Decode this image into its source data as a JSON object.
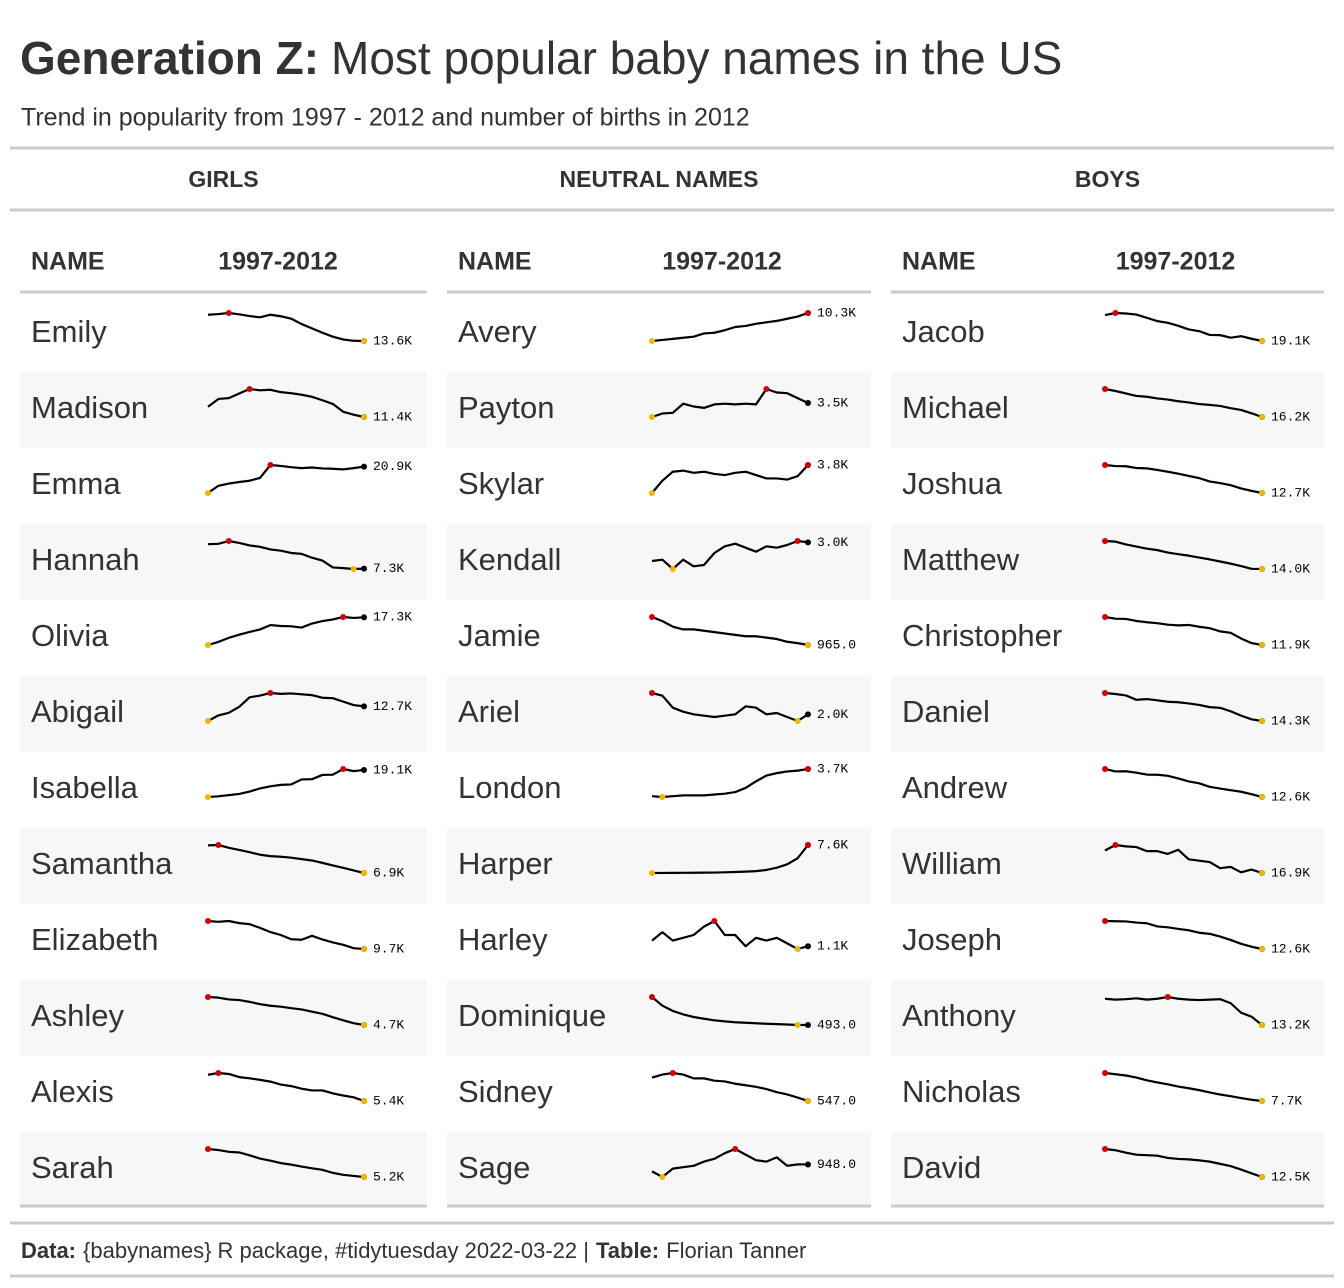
{
  "title_bold": "Generation Z:",
  "title_rest": "Most popular baby names in the US",
  "subtitle": "Trend in popularity from 1997 - 2012 and number of births in 2012",
  "highlight_colors": {
    "line": "#000000",
    "max": "#d40000",
    "min": "#f2b600",
    "last": "#000000"
  },
  "groups": [
    {
      "heading": "GIRLS",
      "col_name": "NAME",
      "col_trend": "1997-2012",
      "rows": [
        {
          "name": "Emily",
          "values": [
            25700,
            26000,
            26500,
            25900,
            25100,
            24500,
            25700,
            25000,
            23900,
            21400,
            19400,
            17400,
            15600,
            14300,
            13700,
            13600
          ],
          "value_label": "13.6K"
        },
        {
          "name": "Madison",
          "values": [
            15300,
            18300,
            18600,
            20400,
            22100,
            21600,
            21800,
            20900,
            20500,
            19900,
            19100,
            17800,
            16400,
            13400,
            12300,
            11400
          ],
          "value_label": "11.4K"
        },
        {
          "name": "Emma",
          "values": [
            12500,
            14800,
            15500,
            16000,
            16400,
            17300,
            21400,
            21100,
            20700,
            20400,
            20600,
            20300,
            20200,
            20000,
            20400,
            20900
          ],
          "value_label": "20.9K"
        },
        {
          "name": "Hannah",
          "values": [
            21200,
            21400,
            23000,
            21900,
            20500,
            19700,
            18200,
            17500,
            16200,
            15700,
            13500,
            11900,
            8000,
            7600,
            7100,
            7300
          ],
          "value_label": "7.3K"
        },
        {
          "name": "Olivia",
          "values": [
            8400,
            9400,
            10700,
            11700,
            12600,
            13400,
            14800,
            14500,
            14400,
            14000,
            15300,
            16100,
            16600,
            17400,
            17100,
            17300
          ],
          "value_label": "17.3K"
        },
        {
          "name": "Abigail",
          "values": [
            9300,
            10600,
            11200,
            12600,
            14800,
            15200,
            15800,
            15600,
            15700,
            15500,
            15300,
            14700,
            14600,
            13800,
            13000,
            12700
          ],
          "value_label": "12.7K"
        },
        {
          "name": "Isabella",
          "values": [
            7700,
            8000,
            8500,
            9000,
            10000,
            11300,
            12200,
            12800,
            13000,
            15100,
            15200,
            17000,
            17100,
            19500,
            18600,
            19100
          ],
          "value_label": "19.1K"
        },
        {
          "name": "Samantha",
          "values": [
            20800,
            21000,
            19600,
            18500,
            17400,
            16100,
            15400,
            15100,
            14600,
            13900,
            13200,
            12000,
            10700,
            9500,
            8200,
            6900
          ],
          "value_label": "6.9K"
        },
        {
          "name": "Elizabeth",
          "values": [
            20300,
            20000,
            20300,
            19500,
            19100,
            17700,
            16100,
            15000,
            13400,
            13200,
            14700,
            13300,
            12200,
            11300,
            10000,
            9700
          ],
          "value_label": "9.7K"
        },
        {
          "name": "Ashley",
          "values": [
            22000,
            21600,
            20500,
            20100,
            19000,
            17600,
            16600,
            16000,
            15100,
            14300,
            12900,
            11600,
            9500,
            7600,
            5800,
            4700
          ],
          "value_label": "4.7K"
        },
        {
          "name": "Alexis",
          "values": [
            18800,
            19700,
            19200,
            17600,
            17000,
            16200,
            15300,
            13800,
            13000,
            11700,
            10800,
            10800,
            9300,
            8200,
            7300,
            5400
          ],
          "value_label": "5.4K"
        },
        {
          "name": "Sarah",
          "values": [
            18100,
            17600,
            16800,
            16500,
            15200,
            13700,
            12700,
            11600,
            10900,
            10000,
            9200,
            8500,
            7100,
            6200,
            5700,
            5200
          ],
          "value_label": "5.2K"
        }
      ]
    },
    {
      "heading": "NEUTRAL NAMES",
      "col_name": "NAME",
      "col_trend": "1997-2012",
      "rows": [
        {
          "name": "Avery",
          "values": [
            2500,
            2800,
            3100,
            3400,
            3700,
            4600,
            4800,
            5500,
            6400,
            6700,
            7300,
            7700,
            8100,
            8700,
            9300,
            10300
          ],
          "value_label": "10.3K"
        },
        {
          "name": "Payton",
          "values": [
            1500,
            2000,
            2100,
            3400,
            3000,
            2800,
            3300,
            3400,
            3300,
            3400,
            3300,
            5500,
            5000,
            4900,
            4200,
            3500
          ],
          "value_label": "3.5K"
        },
        {
          "name": "Skylar",
          "values": [
            1300,
            2400,
            3200,
            3300,
            3100,
            3200,
            3000,
            2900,
            3100,
            3200,
            2900,
            2600,
            2600,
            2500,
            2800,
            3800
          ],
          "value_label": "3.8K"
        },
        {
          "name": "Kendall",
          "values": [
            1600,
            1700,
            1000,
            1700,
            1200,
            1300,
            2200,
            2700,
            2900,
            2600,
            2300,
            2700,
            2600,
            2800,
            3100,
            3000
          ],
          "value_label": "3.0K"
        },
        {
          "name": "Jamie",
          "values": [
            3000,
            2700,
            2300,
            2100,
            2100,
            2000,
            1900,
            1800,
            1700,
            1600,
            1600,
            1500,
            1400,
            1200,
            1100,
            965
          ],
          "value_label": "965.0"
        },
        {
          "name": "Ariel",
          "values": [
            3600,
            3400,
            2500,
            2200,
            2000,
            1900,
            1800,
            1900,
            2000,
            2600,
            2500,
            2000,
            2100,
            1800,
            1500,
            2000
          ],
          "value_label": "2.0K"
        },
        {
          "name": "London",
          "values": [
            400,
            300,
            400,
            500,
            500,
            500,
            600,
            700,
            900,
            1400,
            2200,
            2900,
            3200,
            3400,
            3500,
            3700
          ],
          "value_label": "3.7K"
        },
        {
          "name": "Harper",
          "values": [
            200,
            210,
            230,
            250,
            270,
            290,
            320,
            380,
            460,
            560,
            700,
            1000,
            1600,
            2500,
            4100,
            7600
          ],
          "value_label": "7.6K"
        },
        {
          "name": "Harley",
          "values": [
            1300,
            1600,
            1300,
            1400,
            1500,
            1800,
            2000,
            1500,
            1500,
            1100,
            1400,
            1300,
            1400,
            1200,
            1000,
            1100
          ],
          "value_label": "1.1K"
        },
        {
          "name": "Dominique",
          "values": [
            2100,
            1600,
            1300,
            1100,
            950,
            850,
            760,
            700,
            650,
            620,
            590,
            560,
            540,
            520,
            490,
            493
          ],
          "value_label": "493.0"
        },
        {
          "name": "Sidney",
          "values": [
            3600,
            4000,
            4200,
            4000,
            3500,
            3500,
            3200,
            3100,
            2800,
            2600,
            2400,
            2100,
            1700,
            1400,
            1000,
            547
          ],
          "value_label": "547.0"
        },
        {
          "name": "Sage",
          "values": [
            700,
            500,
            800,
            850,
            900,
            1050,
            1150,
            1350,
            1500,
            1300,
            1100,
            1050,
            1200,
            900,
            950,
            948
          ],
          "value_label": "948.0"
        }
      ]
    },
    {
      "heading": "BOYS",
      "col_name": "NAME",
      "col_trend": "1997-2012",
      "rows": [
        {
          "name": "Jacob",
          "values": [
            34100,
            35300,
            35000,
            34400,
            32500,
            30600,
            29600,
            27900,
            25800,
            24800,
            22600,
            22500,
            21000,
            21900,
            20400,
            19100
          ],
          "value_label": "19.1K"
        },
        {
          "name": "Michael",
          "values": [
            37200,
            35700,
            33900,
            32000,
            31400,
            30100,
            29300,
            28000,
            27100,
            25900,
            25300,
            24500,
            22800,
            21500,
            19000,
            16200
          ],
          "value_label": "16.2K"
        },
        {
          "name": "Joshua",
          "values": [
            28500,
            27900,
            27800,
            26800,
            26600,
            25700,
            24700,
            23600,
            22300,
            21100,
            19200,
            18300,
            17100,
            15300,
            13900,
            12700
          ],
          "value_label": "12.7K"
        },
        {
          "name": "Matthew",
          "values": [
            31200,
            30800,
            29100,
            27800,
            26500,
            25600,
            24100,
            23100,
            22200,
            21000,
            19900,
            18600,
            17300,
            15800,
            14100,
            14000
          ],
          "value_label": "14.0K"
        },
        {
          "name": "Christopher",
          "values": [
            33700,
            32400,
            32200,
            30600,
            29600,
            28900,
            27700,
            27200,
            27500,
            26100,
            25000,
            22500,
            21400,
            17000,
            13400,
            11900
          ],
          "value_label": "11.9K"
        },
        {
          "name": "Daniel",
          "values": [
            25800,
            25400,
            24800,
            23000,
            23300,
            22800,
            22200,
            22000,
            21500,
            20900,
            20000,
            19700,
            18300,
            16500,
            15000,
            14300
          ],
          "value_label": "14.3K"
        },
        {
          "name": "Andrew",
          "values": [
            28600,
            27200,
            27300,
            26500,
            25400,
            25300,
            24700,
            23200,
            21500,
            20400,
            18400,
            17400,
            16500,
            15600,
            14200,
            12600
          ],
          "value_label": "12.6K"
        },
        {
          "name": "William",
          "values": [
            20200,
            21000,
            20800,
            20700,
            20100,
            20100,
            19700,
            20300,
            18900,
            18700,
            18500,
            17600,
            17800,
            17000,
            17400,
            16900
          ],
          "value_label": "16.9K"
        },
        {
          "name": "Joseph",
          "values": [
            25000,
            24900,
            24800,
            24300,
            24000,
            22600,
            22200,
            21500,
            20900,
            19800,
            19300,
            18100,
            16600,
            14900,
            13600,
            12600
          ],
          "value_label": "12.6K"
        },
        {
          "name": "Anthony",
          "values": [
            19200,
            19000,
            19100,
            19300,
            19000,
            19200,
            19600,
            19200,
            19000,
            18900,
            19000,
            19100,
            18200,
            16000,
            15100,
            13200
          ],
          "value_label": "13.2K"
        },
        {
          "name": "Nicholas",
          "values": [
            21100,
            20500,
            19900,
            18900,
            17600,
            16600,
            15700,
            14600,
            13800,
            12900,
            11800,
            10800,
            10000,
            9100,
            8300,
            7700
          ],
          "value_label": "7.7K"
        },
        {
          "name": "David",
          "values": [
            23800,
            23300,
            22300,
            21500,
            21300,
            21100,
            20200,
            19800,
            19600,
            19200,
            18700,
            17800,
            16900,
            15500,
            14000,
            12500
          ],
          "value_label": "12.5K"
        }
      ]
    }
  ],
  "footer": {
    "data_label": "Data:",
    "data_text": "{babynames} R package, #tidytuesday 2022-03-22 |",
    "table_label": "Table:",
    "table_text": "Florian Tanner"
  }
}
